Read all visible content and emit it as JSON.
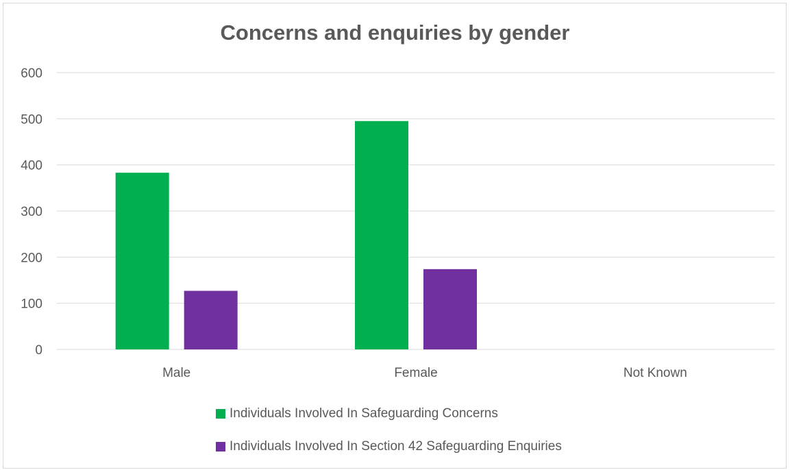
{
  "chart_data": {
    "type": "bar",
    "title": "Concerns and enquiries by gender",
    "categories": [
      "Male",
      "Female",
      "Not Known"
    ],
    "series": [
      {
        "name": "Individuals Involved In Safeguarding Concerns",
        "color": "#00b050",
        "values": [
          383,
          495,
          0
        ]
      },
      {
        "name": "Individuals Involved In Section 42 Safeguarding Enquiries",
        "color": "#7030a0",
        "values": [
          127,
          174,
          0
        ]
      }
    ],
    "ylim": [
      0,
      600
    ],
    "yticks": [
      0,
      100,
      200,
      300,
      400,
      500,
      600
    ],
    "grid": true,
    "legend_position": "bottom"
  }
}
